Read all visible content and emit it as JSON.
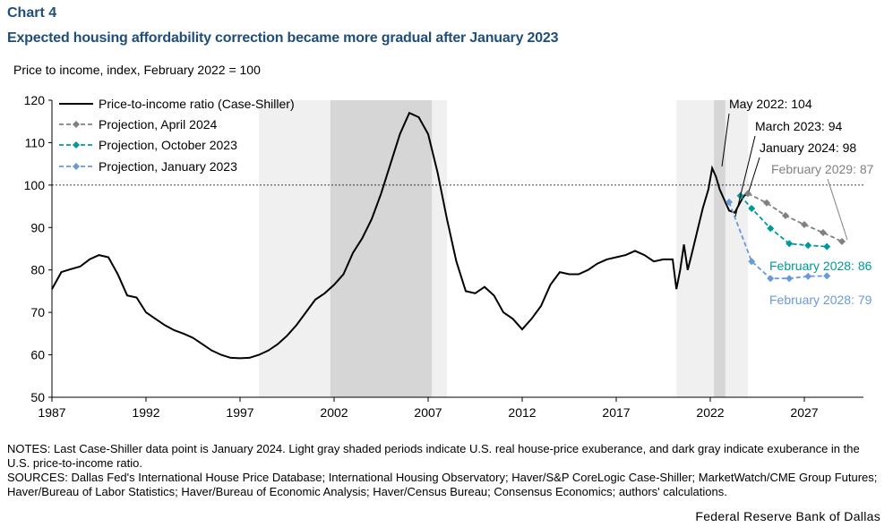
{
  "header": {
    "label": "Chart 4",
    "title": "Expected housing affordability correction became more gradual after January 2023",
    "subtitle": "Price to income, index, February 2022 = 100"
  },
  "notes": {
    "line1": "NOTES: Last Case-Shiller data point is January 2024. Light gray shaded periods indicate U.S. real house-price exuberance, and dark gray indicate exuberance in the U.S. price-to-income ratio.",
    "line2": "SOURCES: Dallas Fed's International House Price Database; International Housing Observatory; Haver/S&P CoreLogic Case-Shiller; MarketWatch/CME Group Futures; Haver/Bureau of Labor Statistics; Haver/Bureau of Economic Analysis; Haver/Census Bureau; Consensus Economics; authors' calculations."
  },
  "credit": "Federal Reserve Bank of Dallas",
  "colors": {
    "main": "#000000",
    "april2024": "#808080",
    "october2023": "#009999",
    "january2023": "#6a9ad6",
    "light_shade": "#f0f0f0",
    "dark_shade": "#d6d6d6",
    "title_blue": "#1f4e79"
  },
  "chart_data": {
    "type": "line",
    "xlim": [
      1987,
      2030
    ],
    "ylim": [
      50,
      120
    ],
    "x_ticks": [
      1987,
      1992,
      1997,
      2002,
      2007,
      2012,
      2017,
      2022,
      2027
    ],
    "x_tick_labels": [
      "1987",
      "1992",
      "1997",
      "2002",
      "2007",
      "2012",
      "2017",
      "2022",
      "2027"
    ],
    "y_ticks": [
      50,
      60,
      70,
      80,
      90,
      100,
      110,
      120
    ],
    "y_tick_labels": [
      "50",
      "60",
      "70",
      "80",
      "90",
      "100",
      "110",
      "120"
    ],
    "reference_line": 100,
    "light_shaded_periods": [
      [
        1998.0,
        2008.0
      ],
      [
        2020.2,
        2024.0
      ]
    ],
    "dark_shaded_periods": [
      [
        2001.8,
        2007.2
      ],
      [
        2022.2,
        2022.8
      ]
    ],
    "legend_position": "top-left",
    "series": [
      {
        "name": "Price-to-income ratio (Case-Shiller)",
        "style": "solid",
        "x": [
          1987.0,
          1987.5,
          1988.0,
          1988.5,
          1989.0,
          1989.5,
          1990.0,
          1990.5,
          1991.0,
          1991.5,
          1992.0,
          1992.5,
          1993.0,
          1993.5,
          1994.0,
          1994.5,
          1995.0,
          1995.5,
          1996.0,
          1996.5,
          1997.0,
          1997.5,
          1998.0,
          1998.5,
          1999.0,
          1999.5,
          2000.0,
          2000.5,
          2001.0,
          2001.5,
          2002.0,
          2002.5,
          2003.0,
          2003.5,
          2004.0,
          2004.5,
          2005.0,
          2005.5,
          2006.0,
          2006.5,
          2007.0,
          2007.5,
          2008.0,
          2008.5,
          2009.0,
          2009.5,
          2010.0,
          2010.5,
          2011.0,
          2011.5,
          2012.0,
          2012.5,
          2013.0,
          2013.5,
          2014.0,
          2014.5,
          2015.0,
          2015.5,
          2016.0,
          2016.5,
          2017.0,
          2017.5,
          2018.0,
          2018.5,
          2019.0,
          2019.5,
          2020.0,
          2020.2,
          2020.4,
          2020.6,
          2020.8,
          2021.0,
          2021.3,
          2021.6,
          2021.9,
          2022.1,
          2022.3,
          2022.5,
          2022.7,
          2023.0,
          2023.3,
          2023.6,
          2023.8,
          2024.0
        ],
        "y": [
          75.5,
          79.5,
          80.2,
          80.8,
          82.5,
          83.5,
          83.0,
          79.0,
          74.0,
          73.5,
          70.0,
          68.5,
          67.0,
          65.8,
          65.0,
          64.0,
          62.5,
          61.0,
          60.0,
          59.3,
          59.2,
          59.3,
          60.0,
          61.0,
          62.5,
          64.5,
          67.0,
          70.0,
          73.0,
          74.5,
          76.5,
          79.0,
          84.0,
          87.5,
          92.0,
          98.0,
          105.0,
          112.0,
          117.0,
          116.0,
          112.0,
          103.0,
          92.0,
          82.0,
          75.0,
          74.5,
          76.0,
          74.0,
          70.0,
          68.5,
          66.0,
          68.5,
          71.5,
          76.5,
          79.5,
          79.0,
          79.0,
          80.0,
          81.5,
          82.5,
          83.0,
          83.5,
          84.5,
          83.5,
          82.0,
          82.5,
          82.5,
          75.5,
          80.0,
          86.0,
          80.0,
          83.5,
          89.0,
          94.5,
          99.0,
          104.0,
          102.0,
          99.0,
          97.0,
          94.0,
          93.5,
          96.0,
          97.5,
          98.0
        ]
      },
      {
        "name": "Projection, April 2024",
        "style": "dashed",
        "x": [
          2024.0,
          2025.0,
          2026.0,
          2027.0,
          2028.0,
          2029.0
        ],
        "y": [
          98.0,
          95.8,
          92.8,
          90.7,
          88.8,
          86.7
        ]
      },
      {
        "name": "Projection, October 2023",
        "style": "dashed",
        "x": [
          2023.6,
          2024.2,
          2025.2,
          2026.2,
          2027.2,
          2028.2
        ],
        "y": [
          97.5,
          94.5,
          89.8,
          86.2,
          85.8,
          85.5
        ]
      },
      {
        "name": "Projection, January 2023",
        "style": "dashed",
        "x": [
          2023.0,
          2024.2,
          2025.2,
          2026.2,
          2027.2,
          2028.2
        ],
        "y": [
          96.0,
          82.0,
          78.0,
          78.0,
          78.5,
          78.6
        ]
      }
    ],
    "annotations": [
      {
        "text": "May 2022: 104",
        "series": 0
      },
      {
        "text": "March 2023: 94",
        "series": 0
      },
      {
        "text": "January 2024: 98",
        "series": 0
      },
      {
        "text": "February 2029: 87",
        "series": 1
      },
      {
        "text": "February 2028: 86",
        "series": 2
      },
      {
        "text": "February 2028: 79",
        "series": 3
      }
    ]
  }
}
